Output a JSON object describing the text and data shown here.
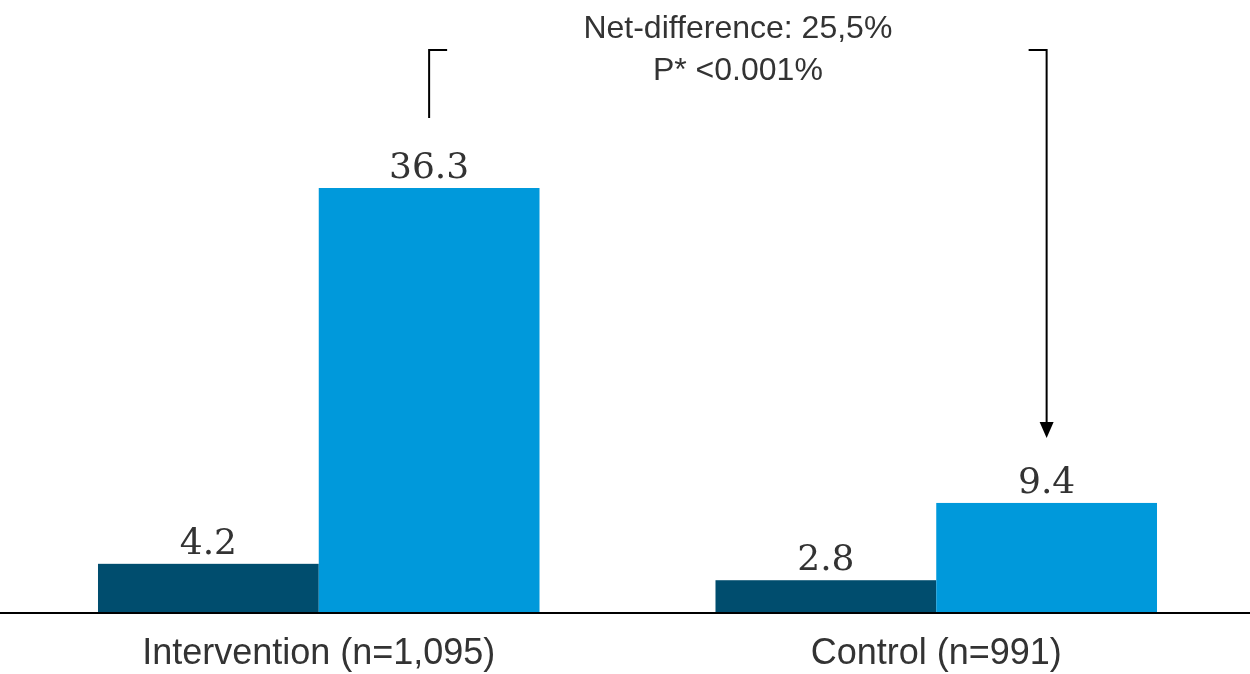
{
  "chart_data": {
    "type": "bar",
    "categories": [
      "Intervention (n=1,095)",
      "Control (n=991)"
    ],
    "series": [
      {
        "color": "#004d6e",
        "values": [
          4.2,
          2.8
        ]
      },
      {
        "color": "#0099db",
        "values": [
          36.3,
          9.4
        ]
      }
    ],
    "data_labels": true,
    "annotations": [
      "Net-difference: 25,5%",
      "P* <0.001%"
    ]
  }
}
